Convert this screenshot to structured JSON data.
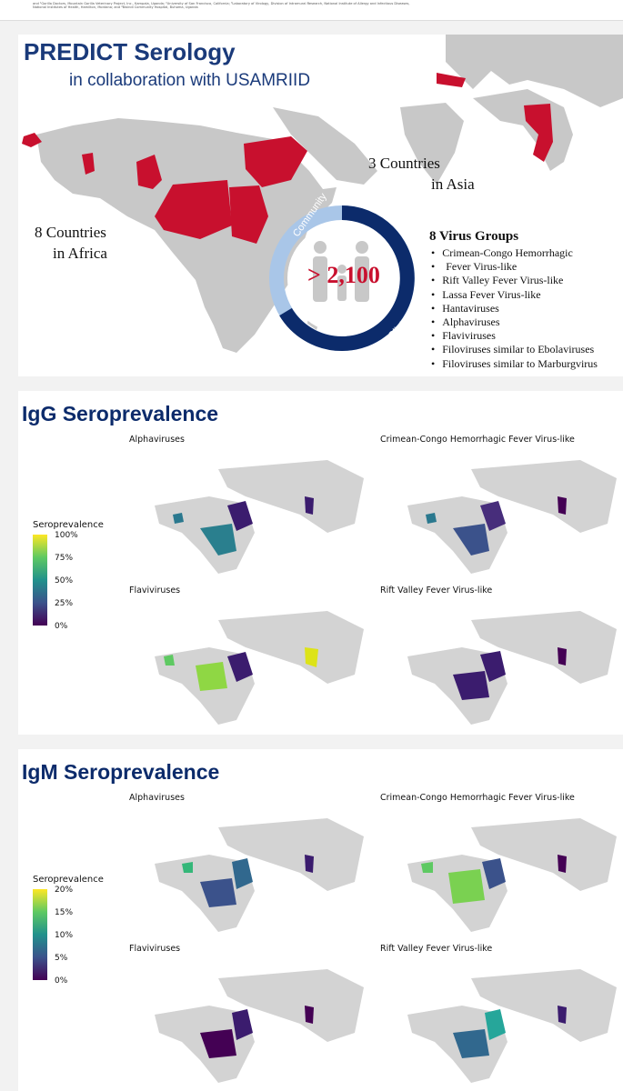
{
  "header": {
    "tiny_text": "and ¹Gorilla Doctors, Mountain Gorilla Veterinary Project, Inc., Kampala, Uganda; ²University of San Francisco, California; ³Laboratory of Virology, Division of Intramural Research, National Institute of Allergy and Infectious Diseases, National Institutes of Health, Hamilton, Montana; and ⁴Bwindi Community Hospital, Buhoma, Uganda"
  },
  "summary": {
    "title": "PREDICT Serology",
    "subtitle": "in collaboration with USAMRIID",
    "asia_line1": "3 Countries",
    "asia_line2": "in Asia",
    "africa_line1": "8 Countries",
    "africa_line2": "in Africa",
    "donut_center": "> 2,100",
    "donut_label_community": "Community",
    "donut_label_clinic": "Clinic",
    "virus_groups_title": "8 Virus Groups",
    "virus_groups": [
      "Crimean-Congo Hemorrhagic",
      "Fever Virus-like",
      "Rift Valley Fever Virus-like",
      "Lassa Fever Virus-like",
      "Hantaviruses",
      "Alphaviruses",
      "Flaviviruses",
      "Filoviruses similar to Ebolaviruses",
      "Filoviruses similar to Marburgvirus"
    ],
    "colors": {
      "highlight": "#c8102e",
      "land": "#c8c8c8",
      "title": "#1a3a7a",
      "donut_dark": "#0c2b6b",
      "donut_light": "#a9c6e8"
    }
  },
  "igg": {
    "title": "IgG Seroprevalence",
    "maps": [
      "Alphaviruses",
      "Crimean-Congo Hemorrhagic Fever Virus-like",
      "Flaviviruses",
      "Rift Valley Fever Virus-like"
    ],
    "legend_title": "Seroprevalence",
    "legend_ticks": [
      "100%",
      "75%",
      "50%",
      "25%",
      "0%"
    ]
  },
  "igm": {
    "title": "IgM Seroprevalence",
    "maps": [
      "Alphaviruses",
      "Crimean-Congo Hemorrhagic Fever Virus-like",
      "Flaviviruses",
      "Rift Valley Fever Virus-like"
    ],
    "legend_title": "Seroprevalence",
    "legend_ticks": [
      "20%",
      "15%",
      "10%",
      "5%",
      "0%"
    ]
  }
}
